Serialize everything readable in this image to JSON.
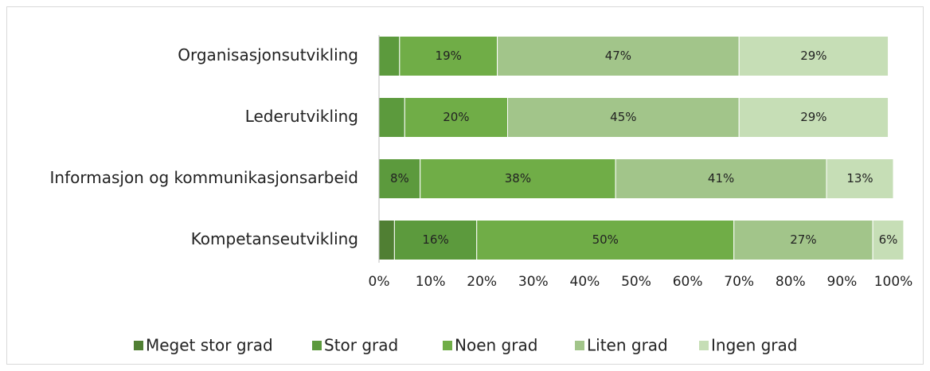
{
  "chart_data": {
    "type": "stacked-bar-horizontal",
    "categories": [
      "Organisasjonsutvikling",
      "Lederutvikling",
      "Informasjon og kommunikasjonsarbeid",
      "Kompetanseutvikling"
    ],
    "series": [
      {
        "name": "Meget stor grad",
        "color": "#507f33",
        "values": [
          0,
          0,
          0,
          3
        ],
        "value_labels": [
          null,
          null,
          null,
          null
        ]
      },
      {
        "name": "Stor grad",
        "color": "#5c9a3d",
        "values": [
          4,
          5,
          8,
          16
        ],
        "value_labels": [
          null,
          null,
          "8%",
          "16%"
        ]
      },
      {
        "name": "Noen grad",
        "color": "#70ad47",
        "values": [
          19,
          20,
          38,
          50
        ],
        "value_labels": [
          "19%",
          "20%",
          "38%",
          "50%"
        ]
      },
      {
        "name": "Liten grad",
        "color": "#a2c58a",
        "values": [
          47,
          45,
          41,
          27
        ],
        "value_labels": [
          "47%",
          "45%",
          "41%",
          "27%"
        ]
      },
      {
        "name": "Ingen grad",
        "color": "#c6deb6",
        "values": [
          29,
          29,
          13,
          6
        ],
        "value_labels": [
          "29%",
          "29%",
          "13%",
          "6%"
        ]
      }
    ],
    "xlim": [
      0,
      100
    ],
    "xticks": [
      {
        "value": 0,
        "label": "0%"
      },
      {
        "value": 10,
        "label": "10%"
      },
      {
        "value": 20,
        "label": "20%"
      },
      {
        "value": 30,
        "label": "30%"
      },
      {
        "value": 40,
        "label": "40%"
      },
      {
        "value": 50,
        "label": "50%"
      },
      {
        "value": 60,
        "label": "60%"
      },
      {
        "value": 70,
        "label": "70%"
      },
      {
        "value": 80,
        "label": "80%"
      },
      {
        "value": 90,
        "label": "90%"
      },
      {
        "value": 100,
        "label": "100%"
      }
    ],
    "legend": "bottom"
  }
}
